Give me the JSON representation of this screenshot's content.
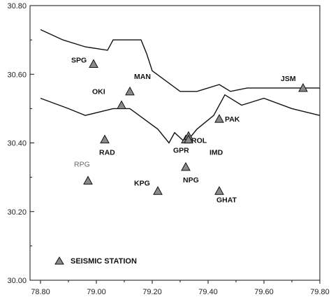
{
  "axes": {
    "x_ticks": [
      "78.80",
      "79.00",
      "79.20",
      "79.40",
      "79.60",
      "79.80"
    ],
    "y_ticks": [
      "30.80",
      "30.60",
      "30.40",
      "30.20",
      "30.00"
    ],
    "xlim": [
      78.8,
      79.8
    ],
    "ylim": [
      30.0,
      30.8
    ]
  },
  "stations": [
    {
      "name": "SPG",
      "lon": 78.99,
      "lat": 30.63
    },
    {
      "name": "MAN",
      "lon": 79.12,
      "lat": 30.55
    },
    {
      "name": "OKI",
      "lon": 79.09,
      "lat": 30.51
    },
    {
      "name": "JSM",
      "lon": 79.74,
      "lat": 30.56
    },
    {
      "name": "PAK",
      "lon": 79.44,
      "lat": 30.47
    },
    {
      "name": "RAD",
      "lon": 79.03,
      "lat": 30.41
    },
    {
      "name": "GPR",
      "lon": 79.32,
      "lat": 30.41
    },
    {
      "name": "ROL",
      "lon": 79.33,
      "lat": 30.42
    },
    {
      "name": "IMD",
      "lon": 79.33,
      "lat": 30.41
    },
    {
      "name": "NPG",
      "lon": 79.32,
      "lat": 30.33
    },
    {
      "name": "RPG",
      "lon": 78.97,
      "lat": 30.29
    },
    {
      "name": "KPG",
      "lon": 79.22,
      "lat": 30.26
    },
    {
      "name": "GHAT",
      "lon": 79.44,
      "lat": 30.26
    }
  ],
  "boundaries": {
    "upper": [
      [
        78.8,
        30.73
      ],
      [
        78.88,
        30.7
      ],
      [
        78.96,
        30.68
      ],
      [
        79.04,
        30.67
      ],
      [
        79.06,
        30.7
      ],
      [
        79.16,
        30.7
      ],
      [
        79.18,
        30.66
      ],
      [
        79.2,
        30.61
      ],
      [
        79.3,
        30.55
      ],
      [
        79.36,
        30.55
      ],
      [
        79.44,
        30.57
      ],
      [
        79.48,
        30.55
      ],
      [
        79.54,
        30.56
      ],
      [
        79.62,
        30.56
      ],
      [
        79.68,
        30.56
      ],
      [
        79.8,
        30.56
      ]
    ],
    "lower": [
      [
        78.8,
        30.53
      ],
      [
        78.9,
        30.5
      ],
      [
        78.96,
        30.48
      ],
      [
        79.06,
        30.5
      ],
      [
        79.12,
        30.5
      ],
      [
        79.22,
        30.44
      ],
      [
        79.26,
        30.4
      ],
      [
        79.28,
        30.43
      ],
      [
        79.32,
        30.4
      ],
      [
        79.36,
        30.44
      ],
      [
        79.42,
        30.48
      ],
      [
        79.46,
        30.54
      ],
      [
        79.52,
        30.51
      ],
      [
        79.6,
        30.53
      ],
      [
        79.7,
        30.5
      ],
      [
        79.8,
        30.48
      ]
    ]
  },
  "legend": {
    "label": "SEISMIC STATION"
  },
  "colors": {
    "ink": "#111111",
    "marker_fill": "#8a8a8a"
  }
}
